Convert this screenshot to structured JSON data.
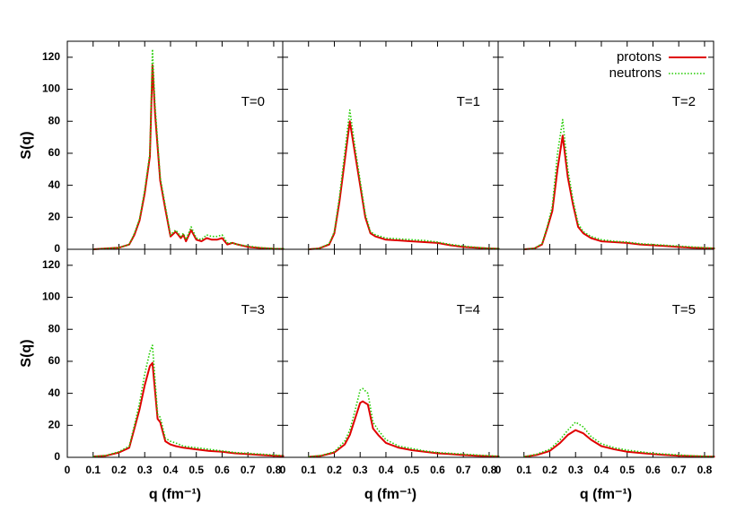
{
  "chart_data": [
    {
      "type": "line",
      "annotation": "T=0",
      "ylabel": "S(q)",
      "xlim": [
        0,
        0.835
      ],
      "ylim": [
        0,
        130
      ],
      "yticks": [
        0,
        20,
        40,
        60,
        80,
        100,
        120
      ],
      "x": [
        0.1,
        0.15,
        0.2,
        0.24,
        0.26,
        0.28,
        0.3,
        0.32,
        0.33,
        0.34,
        0.36,
        0.38,
        0.4,
        0.42,
        0.44,
        0.45,
        0.46,
        0.48,
        0.5,
        0.52,
        0.54,
        0.56,
        0.58,
        0.6,
        0.62,
        0.64,
        0.66,
        0.7,
        0.75,
        0.8,
        0.84
      ],
      "series": [
        {
          "color": "#e00000",
          "style": "solid",
          "values": [
            0,
            0.5,
            1,
            3,
            9,
            18,
            35,
            58,
            115,
            85,
            43,
            25,
            8,
            11,
            7,
            9,
            5,
            12,
            6,
            5,
            7,
            6,
            6,
            7,
            3,
            4,
            3,
            1.5,
            0.8,
            0.3,
            0.2
          ]
        },
        {
          "color": "#22cc00",
          "style": "dotted",
          "values": [
            0,
            0.5,
            1,
            3,
            10,
            19,
            37,
            60,
            125,
            90,
            45,
            27,
            9,
            12,
            8,
            10,
            6,
            14,
            7,
            6,
            9,
            8,
            8,
            9,
            4,
            4,
            3,
            2,
            1,
            0.5,
            0.3
          ]
        }
      ]
    },
    {
      "type": "line",
      "annotation": "T=1",
      "xlim": [
        0,
        0.835
      ],
      "ylim": [
        0,
        130
      ],
      "x": [
        0.1,
        0.14,
        0.18,
        0.2,
        0.22,
        0.24,
        0.26,
        0.28,
        0.3,
        0.32,
        0.34,
        0.36,
        0.4,
        0.45,
        0.5,
        0.55,
        0.6,
        0.65,
        0.7,
        0.75,
        0.8,
        0.84
      ],
      "series": [
        {
          "color": "#e00000",
          "style": "solid",
          "values": [
            0,
            0.5,
            3,
            10,
            30,
            55,
            80,
            60,
            40,
            20,
            10,
            8,
            6,
            5.5,
            5,
            4.5,
            4,
            2.5,
            1.5,
            1,
            0.5,
            0.3
          ]
        },
        {
          "color": "#22cc00",
          "style": "dotted",
          "values": [
            0,
            0.5,
            3.5,
            11,
            33,
            60,
            87,
            64,
            43,
            22,
            11,
            9,
            7,
            6.5,
            6,
            5.5,
            4.5,
            3,
            2,
            1.2,
            0.6,
            0.4
          ]
        }
      ]
    },
    {
      "type": "line",
      "annotation": "T=2",
      "xlim": [
        0,
        0.835
      ],
      "ylim": [
        0,
        130
      ],
      "legend": "upper right",
      "x": [
        0.1,
        0.14,
        0.17,
        0.19,
        0.21,
        0.23,
        0.25,
        0.27,
        0.29,
        0.31,
        0.33,
        0.36,
        0.4,
        0.45,
        0.5,
        0.55,
        0.6,
        0.65,
        0.7,
        0.75,
        0.8,
        0.84
      ],
      "series": [
        {
          "name": "protons",
          "color": "#e00000",
          "style": "solid",
          "values": [
            0,
            0.5,
            3,
            13,
            24,
            50,
            71,
            45,
            28,
            14,
            10,
            7,
            5,
            4.5,
            4,
            3,
            2.5,
            2,
            1.5,
            1,
            0.8,
            0.5
          ]
        },
        {
          "name": "neutrons",
          "color": "#22cc00",
          "style": "dotted",
          "values": [
            0,
            0.6,
            3.5,
            14,
            27,
            60,
            81,
            50,
            31,
            16,
            11,
            8,
            6,
            5,
            4.5,
            3.5,
            3,
            2.5,
            2,
            1.5,
            1,
            0.7
          ]
        }
      ]
    },
    {
      "type": "line",
      "annotation": "T=3",
      "ylabel": "S(q)",
      "xlabel": "q (fm⁻¹)",
      "xlim": [
        0,
        0.835
      ],
      "ylim": [
        0,
        130
      ],
      "yticks": [
        0,
        20,
        40,
        60,
        80,
        100,
        120
      ],
      "xticks": [
        0,
        0.1,
        0.2,
        0.3,
        0.4,
        0.5,
        0.6,
        0.7,
        0.8
      ],
      "x": [
        0.1,
        0.15,
        0.2,
        0.24,
        0.26,
        0.28,
        0.3,
        0.32,
        0.33,
        0.35,
        0.36,
        0.38,
        0.4,
        0.42,
        0.45,
        0.5,
        0.55,
        0.6,
        0.65,
        0.7,
        0.75,
        0.8,
        0.84
      ],
      "series": [
        {
          "color": "#e00000",
          "style": "solid",
          "values": [
            0.5,
            1,
            3,
            6,
            18,
            30,
            45,
            57,
            59,
            24,
            22,
            10,
            8,
            7,
            6,
            5,
            4,
            3.5,
            2.5,
            2,
            1.5,
            1,
            0.8
          ]
        },
        {
          "color": "#22cc00",
          "style": "dotted",
          "values": [
            0.5,
            1.2,
            3.5,
            7,
            20,
            34,
            52,
            66,
            70,
            27,
            25,
            12,
            10,
            9,
            7,
            6,
            5,
            4,
            3,
            2.5,
            2,
            1.5,
            1
          ]
        }
      ]
    },
    {
      "type": "line",
      "annotation": "T=4",
      "xlabel": "q (fm⁻¹)",
      "xlim": [
        0,
        0.835
      ],
      "ylim": [
        0,
        130
      ],
      "xticks": [
        0,
        0.1,
        0.2,
        0.3,
        0.4,
        0.5,
        0.6,
        0.7,
        0.8
      ],
      "x": [
        0.1,
        0.15,
        0.2,
        0.24,
        0.26,
        0.28,
        0.3,
        0.31,
        0.33,
        0.35,
        0.37,
        0.4,
        0.45,
        0.5,
        0.55,
        0.6,
        0.65,
        0.7,
        0.75,
        0.8,
        0.84
      ],
      "series": [
        {
          "color": "#e00000",
          "style": "solid",
          "values": [
            0.3,
            1,
            3,
            8,
            14,
            24,
            34,
            35,
            33,
            18,
            14,
            9,
            6,
            4.5,
            3.5,
            2.5,
            2,
            1.5,
            1,
            0.7,
            0.5
          ]
        },
        {
          "color": "#22cc00",
          "style": "dotted",
          "values": [
            0.3,
            1.2,
            3.5,
            10,
            17,
            29,
            42,
            43,
            40,
            22,
            17,
            11,
            7,
            5.5,
            4,
            3,
            2.5,
            2,
            1.5,
            1,
            0.7
          ]
        }
      ]
    },
    {
      "type": "line",
      "annotation": "T=5",
      "xlabel": "q (fm⁻¹)",
      "xlim": [
        0,
        0.835
      ],
      "ylim": [
        0,
        130
      ],
      "xticks": [
        0,
        0.1,
        0.2,
        0.3,
        0.4,
        0.5,
        0.6,
        0.7,
        0.8
      ],
      "x": [
        0.1,
        0.15,
        0.2,
        0.24,
        0.27,
        0.3,
        0.33,
        0.36,
        0.4,
        0.45,
        0.5,
        0.55,
        0.6,
        0.65,
        0.7,
        0.75,
        0.8,
        0.84
      ],
      "series": [
        {
          "color": "#e00000",
          "style": "solid",
          "values": [
            0.3,
            1.5,
            4,
            9,
            14,
            17,
            15,
            11,
            7,
            5,
            3.5,
            2.7,
            2,
            1.5,
            1,
            0.8,
            0.5,
            0.4
          ]
        },
        {
          "color": "#22cc00",
          "style": "dotted",
          "values": [
            0.4,
            2,
            5,
            11,
            17,
            22,
            19,
            13,
            8.5,
            6,
            4.5,
            3.5,
            2.5,
            2,
            1.5,
            1,
            0.7,
            0.5
          ]
        }
      ]
    }
  ]
}
